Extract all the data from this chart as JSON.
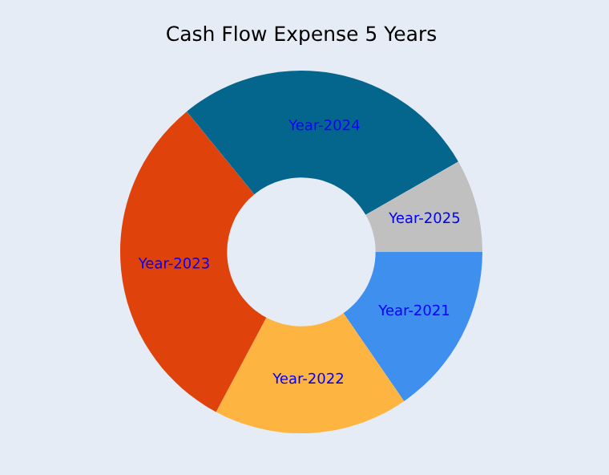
{
  "chart_data": {
    "type": "donut",
    "title": "Cash Flow Expense 5 Years",
    "categories": [
      "Year-2021",
      "Year-2022",
      "Year-2023",
      "Year-2024",
      "Year-2025"
    ],
    "values": [
      15.4,
      17.4,
      31.3,
      27.6,
      8.3
    ],
    "colors": [
      "#3f8fef",
      "#fdb440",
      "#e0420c",
      "#05668d",
      "#c0c0c0"
    ]
  }
}
